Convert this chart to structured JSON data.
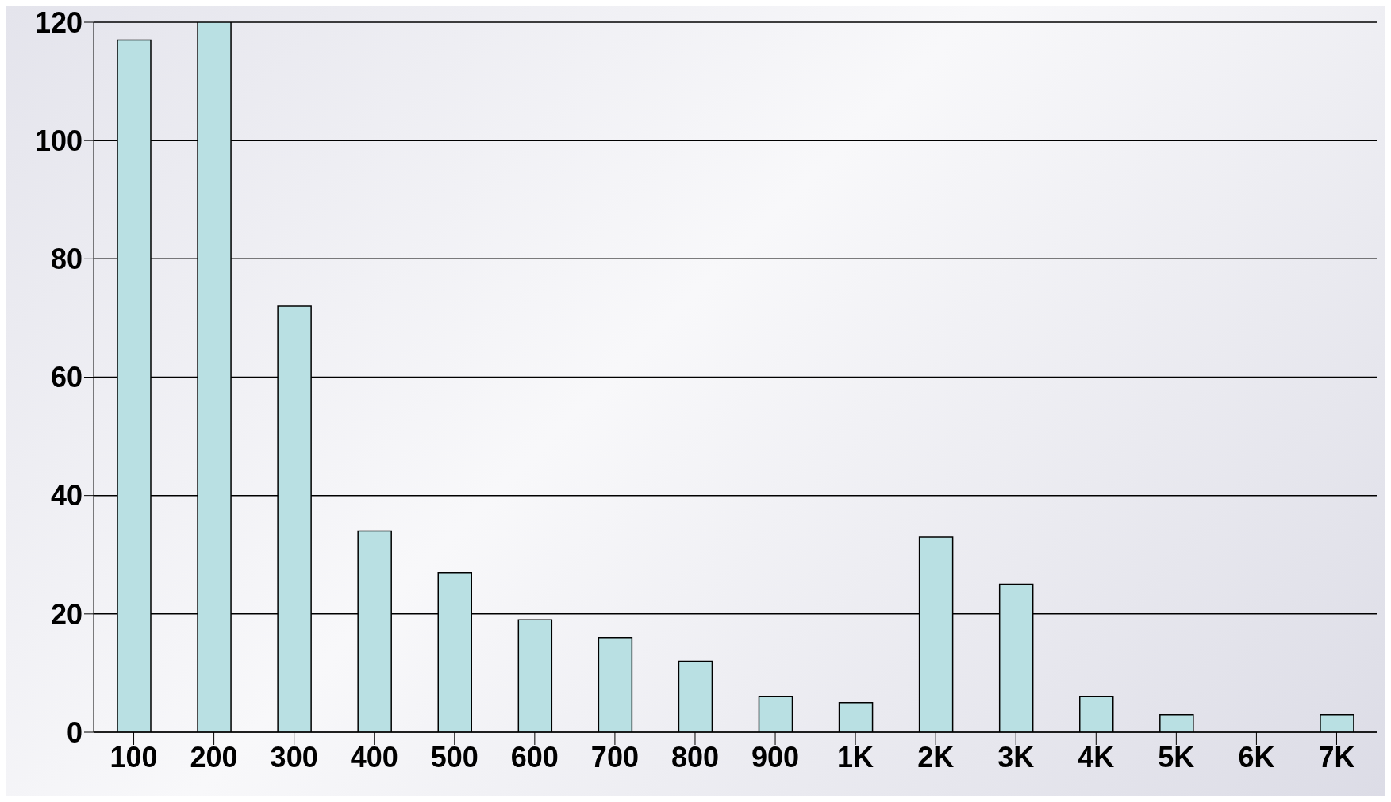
{
  "chart_data": {
    "type": "bar",
    "categories": [
      "100",
      "200",
      "300",
      "400",
      "500",
      "600",
      "700",
      "800",
      "900",
      "1K",
      "2K",
      "3K",
      "4K",
      "5K",
      "6K",
      "7K"
    ],
    "values": [
      117,
      120,
      72,
      34,
      27,
      19,
      16,
      12,
      6,
      5,
      33,
      25,
      6,
      3,
      0,
      3
    ],
    "color": "#b9e0e3",
    "ylim": [
      0,
      120
    ],
    "yticks": [
      0,
      20,
      40,
      60,
      80,
      100,
      120
    ],
    "grid": "y"
  }
}
